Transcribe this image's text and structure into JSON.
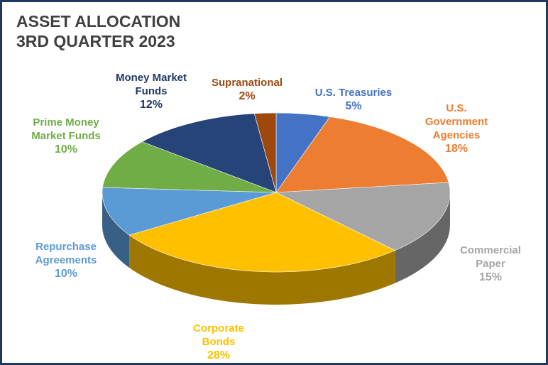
{
  "chart_data": {
    "type": "pie",
    "title": "ASSET ALLOCATION",
    "subtitle": "3RD QUARTER 2023",
    "categories": [
      "U.S. Treasuries",
      "U.S. Government Agencies",
      "Commercial Paper",
      "Corporate Bonds",
      "Repurchase Agreements",
      "Prime Money Market Funds",
      "Money Market Funds",
      "Supranational"
    ],
    "values": [
      5,
      18,
      15,
      28,
      10,
      10,
      12,
      2
    ],
    "value_labels": [
      "5%",
      "18%",
      "15%",
      "28%",
      "10%",
      "10%",
      "12%",
      "2%"
    ],
    "colors": [
      "#4472c4",
      "#ed7d31",
      "#a5a5a5",
      "#ffc000",
      "#5b9bd5",
      "#70ad47",
      "#264478",
      "#9e480e"
    ],
    "label_colors": [
      "#4472c4",
      "#ed7d31",
      "#a5a5a5",
      "#ffc000",
      "#5b9bd5",
      "#70ad47",
      "#1f3864",
      "#9e480e"
    ]
  }
}
